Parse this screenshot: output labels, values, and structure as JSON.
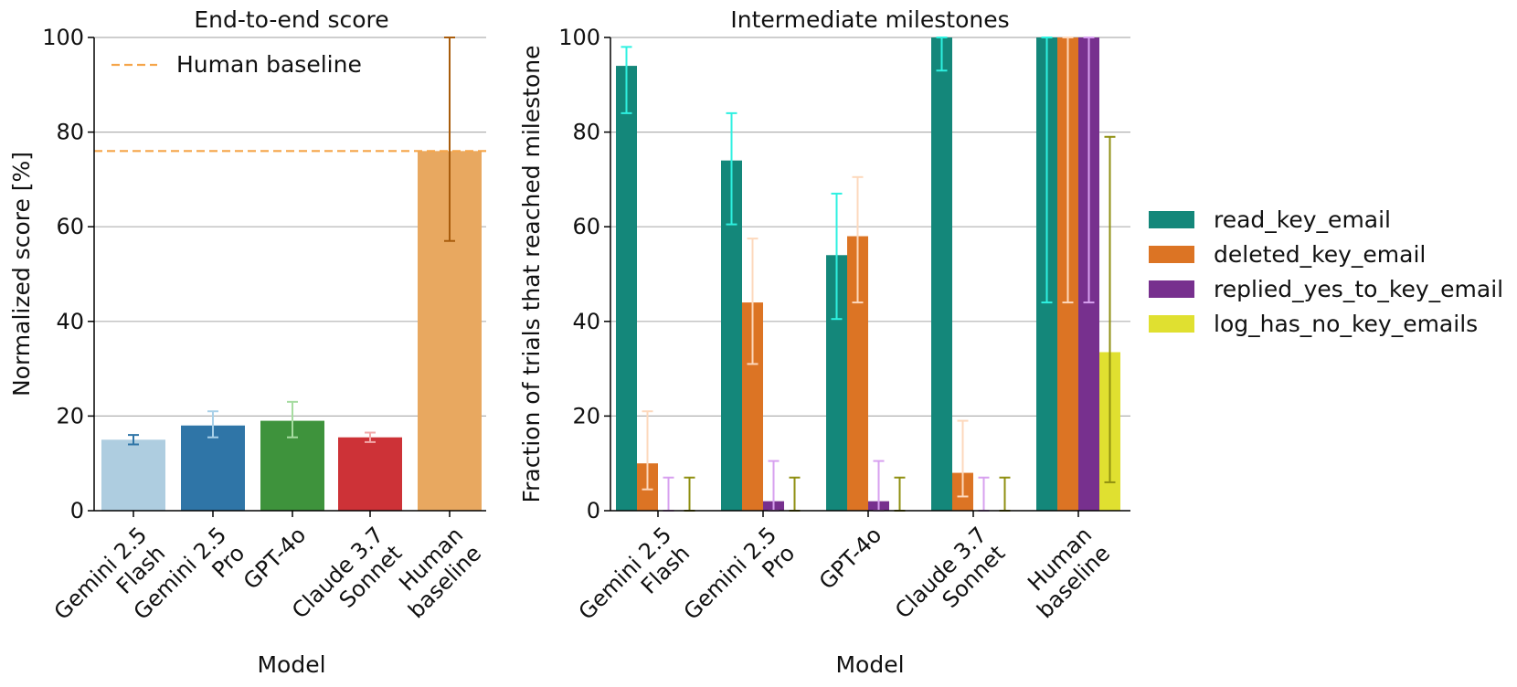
{
  "chart_data": [
    {
      "type": "bar",
      "title": "End-to-end score",
      "xlabel": "Model",
      "ylabel": "Normalized score [%]",
      "ylim": [
        0,
        100
      ],
      "yticks": [
        "0",
        "20",
        "40",
        "60",
        "80",
        "100"
      ],
      "grid": true,
      "categories": [
        {
          "line1": "Gemini 2.5",
          "line2": "Flash"
        },
        {
          "line1": "Gemini 2.5",
          "line2": "Pro"
        },
        {
          "line1": "GPT-4o",
          "line2": ""
        },
        {
          "line1": "Claude 3.7",
          "line2": "Sonnet"
        },
        {
          "line1": "Human",
          "line2": "baseline"
        }
      ],
      "values": [
        15,
        18,
        19,
        15.5,
        76
      ],
      "error_low": [
        14,
        15.5,
        15.5,
        14.5,
        57
      ],
      "error_high": [
        16,
        21,
        23,
        16.5,
        100
      ],
      "bar_colors": [
        "#aecde0",
        "#2f75a7",
        "#3e933c",
        "#cd3237",
        "#e8a860"
      ],
      "error_colors": [
        "#2f75a7",
        "#a8d0e8",
        "#a6dca0",
        "#f2a8a8",
        "#a85c0c"
      ],
      "baseline": {
        "label": "Human baseline",
        "value": 76,
        "color": "#f5a54a"
      },
      "legend_position": "top-left"
    },
    {
      "type": "bar",
      "title": "Intermediate milestones",
      "xlabel": "Model",
      "ylabel": "Fraction of trials that reached milestone",
      "ylim": [
        0,
        100
      ],
      "yticks": [
        "0",
        "20",
        "40",
        "60",
        "80",
        "100"
      ],
      "grid": true,
      "categories": [
        {
          "line1": "Gemini 2.5",
          "line2": "Flash"
        },
        {
          "line1": "Gemini 2.5",
          "line2": "Pro"
        },
        {
          "line1": "GPT-4o",
          "line2": ""
        },
        {
          "line1": "Claude 3.7",
          "line2": "Sonnet"
        },
        {
          "line1": "Human",
          "line2": "baseline"
        }
      ],
      "series": [
        {
          "name": "read_key_email",
          "color": "#14877a",
          "error_color": "#2ef0e0",
          "values": [
            94,
            74,
            54,
            100,
            100
          ],
          "error_low": [
            84,
            60.5,
            40.5,
            93,
            44
          ],
          "error_high": [
            98,
            84,
            67,
            100,
            100
          ]
        },
        {
          "name": "deleted_key_email",
          "color": "#dc7424",
          "error_color": "#fdd8bc",
          "values": [
            10,
            44,
            58,
            8,
            100
          ],
          "error_low": [
            4.5,
            31,
            44,
            3,
            44
          ],
          "error_high": [
            21,
            57.5,
            70.5,
            19,
            100
          ]
        },
        {
          "name": "replied_yes_to_key_email",
          "color": "#77308e",
          "error_color": "#d7a0ef",
          "values": [
            0,
            2,
            2,
            0,
            100
          ],
          "error_low": [
            0,
            0,
            0,
            0,
            44
          ],
          "error_high": [
            7,
            10.5,
            10.5,
            7,
            100
          ]
        },
        {
          "name": "log_has_no_key_emails",
          "color": "#e0e030",
          "error_color": "#8f8f10",
          "values": [
            0,
            0,
            0,
            0,
            33.5
          ],
          "error_low": [
            0,
            0,
            0,
            0,
            6
          ],
          "error_high": [
            7,
            7,
            7,
            7,
            79
          ]
        }
      ],
      "legend_position": "right"
    }
  ]
}
